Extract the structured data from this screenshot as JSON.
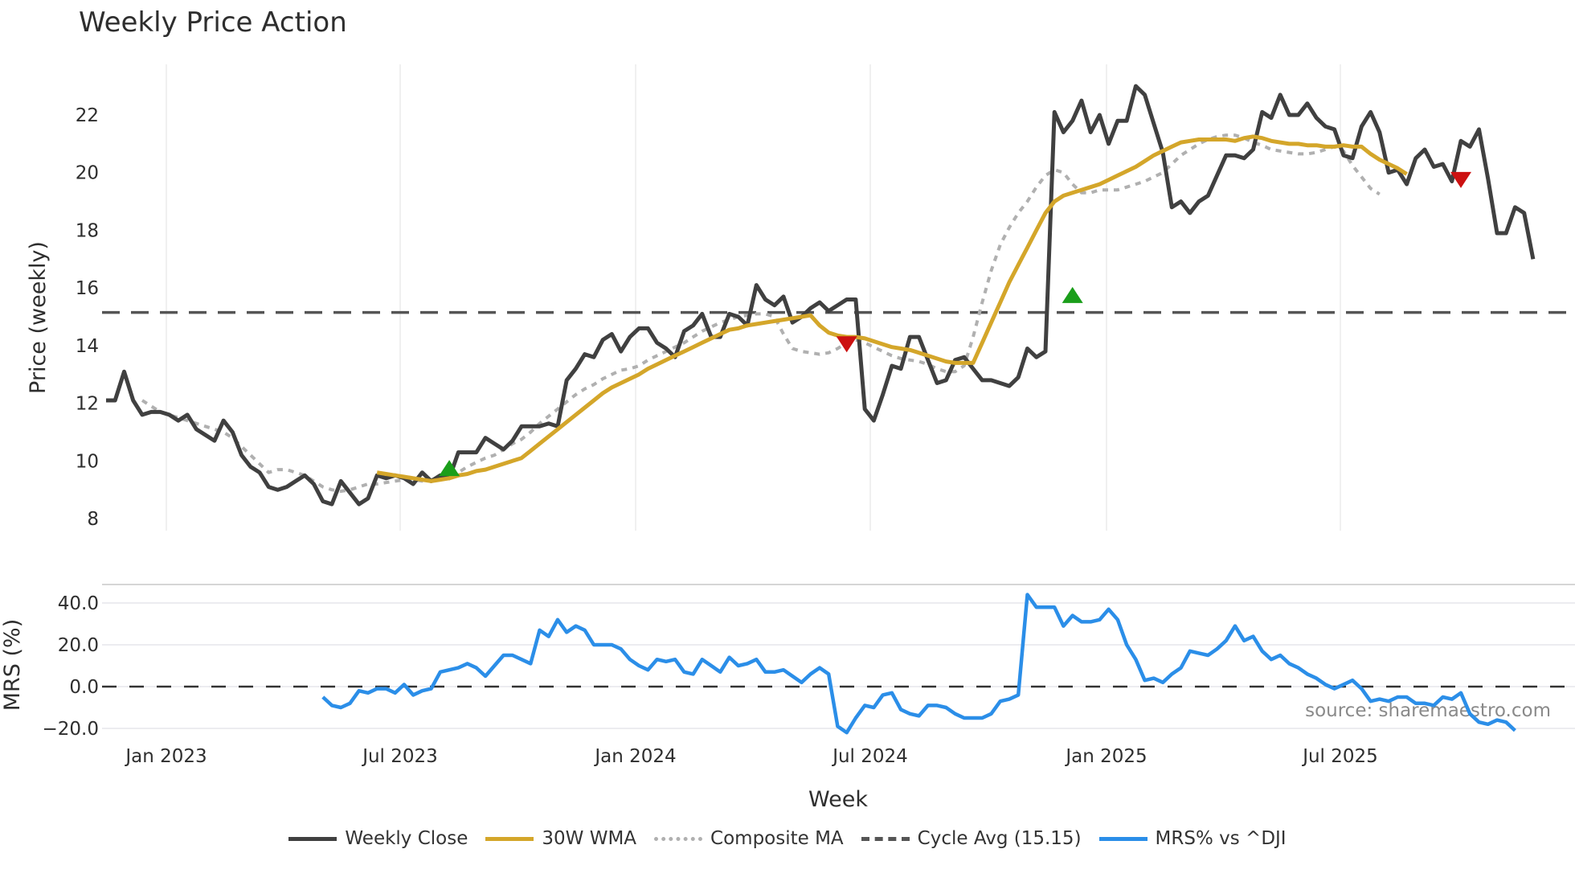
{
  "title": "Weekly Price Action",
  "watermark": "source: sharemaestro.com",
  "colors": {
    "weekly_close": "#404040",
    "wma": "#d4a62a",
    "composite_ma": "#b0b0b0",
    "cycle_avg": "#555555",
    "mrs": "#2b8ee8",
    "buy_signal": "#1a9e1a",
    "sell_signal": "#cc1111",
    "grid": "#ececf0"
  },
  "legend": [
    {
      "label": "Weekly Close",
      "style": "solid",
      "color": "#404040"
    },
    {
      "label": "30W WMA",
      "style": "solid",
      "color": "#d4a62a"
    },
    {
      "label": "Composite MA",
      "style": "dotted",
      "color": "#b0b0b0"
    },
    {
      "label": "Cycle Avg (15.15)",
      "style": "dashed",
      "color": "#555555"
    },
    {
      "label": "MRS% vs ^DJI",
      "style": "solid",
      "color": "#2b8ee8"
    }
  ],
  "chart_data": [
    {
      "type": "line",
      "title": "Weekly Price Action",
      "xlabel": "Week",
      "ylabel": "Price (weekly)",
      "ylim": [
        7.6,
        23.6
      ],
      "yticks": [
        8,
        10,
        12,
        14,
        16,
        18,
        20,
        22
      ],
      "xticks": [
        "Jan 2023",
        "Jul 2023",
        "Jan 2024",
        "Jul 2024",
        "Jan 2025",
        "Jul 2025"
      ],
      "grid": true,
      "legend_position": "bottom",
      "x_start_week_offset": -6.7,
      "x_step": "1 week",
      "series": [
        {
          "name": "Weekly Close",
          "start_index": 0,
          "values": [
            12.1,
            12.1,
            13.1,
            12.1,
            11.6,
            11.7,
            11.7,
            11.6,
            11.4,
            11.6,
            11.1,
            10.9,
            10.7,
            11.4,
            11.0,
            10.2,
            9.8,
            9.6,
            9.1,
            9.0,
            9.1,
            9.3,
            9.5,
            9.2,
            8.6,
            8.5,
            9.3,
            8.9,
            8.5,
            8.7,
            9.5,
            9.4,
            9.5,
            9.4,
            9.2,
            9.6,
            9.3,
            9.5,
            9.4,
            10.3,
            10.3,
            10.3,
            10.8,
            10.6,
            10.4,
            10.7,
            11.2,
            11.2,
            11.2,
            11.3,
            11.2,
            12.8,
            13.2,
            13.7,
            13.6,
            14.2,
            14.4,
            13.8,
            14.3,
            14.6,
            14.6,
            14.1,
            13.9,
            13.6,
            14.5,
            14.7,
            15.1,
            14.3,
            14.3,
            15.1,
            15.0,
            14.7,
            16.1,
            15.6,
            15.4,
            15.7,
            14.8,
            15.0,
            15.3,
            15.5,
            15.2,
            15.4,
            15.6,
            15.6,
            11.8,
            11.4,
            12.3,
            13.3,
            13.2,
            14.3,
            14.3,
            13.5,
            12.7,
            12.8,
            13.5,
            13.6,
            13.2,
            12.8,
            12.8,
            12.7,
            12.6,
            12.9,
            13.9,
            13.6,
            13.8,
            22.1,
            21.4,
            21.8,
            22.5,
            21.4,
            22.0,
            21.0,
            21.8,
            21.8,
            23.0,
            22.7,
            21.7,
            20.7,
            18.8,
            19.0,
            18.6,
            19.0,
            19.2,
            19.9,
            20.6,
            20.6,
            20.5,
            20.8,
            22.1,
            21.9,
            22.7,
            22.0,
            22.0,
            22.4,
            21.9,
            21.6,
            21.5,
            20.6,
            20.5,
            21.6,
            22.1,
            21.4,
            20.0,
            20.1,
            19.6,
            20.5,
            20.8,
            20.2,
            20.3,
            19.7,
            21.1,
            20.9,
            21.5,
            19.8,
            17.9,
            17.9,
            18.8,
            18.6,
            17.0
          ]
        },
        {
          "name": "30W WMA",
          "start_index": 30,
          "values": [
            9.6,
            9.55,
            9.5,
            9.45,
            9.4,
            9.35,
            9.3,
            9.35,
            9.4,
            9.5,
            9.55,
            9.65,
            9.7,
            9.8,
            9.9,
            10.0,
            10.1,
            10.35,
            10.6,
            10.85,
            11.1,
            11.35,
            11.6,
            11.85,
            12.1,
            12.35,
            12.55,
            12.7,
            12.85,
            13.0,
            13.2,
            13.35,
            13.5,
            13.65,
            13.8,
            13.95,
            14.1,
            14.25,
            14.4,
            14.55,
            14.6,
            14.7,
            14.75,
            14.8,
            14.85,
            14.9,
            14.95,
            15.0,
            15.05,
            14.7,
            14.45,
            14.35,
            14.3,
            14.3,
            14.25,
            14.15,
            14.05,
            13.95,
            13.9,
            13.85,
            13.75,
            13.65,
            13.55,
            13.45,
            13.4,
            13.4,
            13.4,
            14.1,
            14.8,
            15.5,
            16.2,
            16.8,
            17.4,
            18.0,
            18.6,
            19.0,
            19.2,
            19.3,
            19.4,
            19.5,
            19.6,
            19.75,
            19.9,
            20.05,
            20.2,
            20.4,
            20.6,
            20.75,
            20.9,
            21.05,
            21.1,
            21.15,
            21.15,
            21.15,
            21.15,
            21.1,
            21.2,
            21.25,
            21.2,
            21.1,
            21.05,
            21.0,
            21.0,
            20.95,
            20.95,
            20.9,
            20.9,
            20.95,
            20.9,
            20.9,
            20.65,
            20.45,
            20.3,
            20.15,
            19.95
          ]
        },
        {
          "name": "Composite MA",
          "start_index": 4,
          "values": [
            12.1,
            11.9,
            11.7,
            11.6,
            11.5,
            11.4,
            11.3,
            11.2,
            11.1,
            11.0,
            10.8,
            10.5,
            10.2,
            9.9,
            9.6,
            9.7,
            9.7,
            9.6,
            9.5,
            9.3,
            9.1,
            9.0,
            8.95,
            9.0,
            9.1,
            9.2,
            9.2,
            9.25,
            9.3,
            9.35,
            9.35,
            9.3,
            9.35,
            9.4,
            9.5,
            9.6,
            9.8,
            9.95,
            10.1,
            10.2,
            10.4,
            10.6,
            10.75,
            11.0,
            11.3,
            11.55,
            11.8,
            12.05,
            12.3,
            12.5,
            12.65,
            12.85,
            13.0,
            13.15,
            13.2,
            13.3,
            13.5,
            13.65,
            13.8,
            13.95,
            14.1,
            14.3,
            14.5,
            14.65,
            14.8,
            14.9,
            15.0,
            15.05,
            15.1,
            15.1,
            15.0,
            14.4,
            13.9,
            13.8,
            13.75,
            13.7,
            13.75,
            13.9,
            14.1,
            14.2,
            14.1,
            13.95,
            13.8,
            13.65,
            13.55,
            13.5,
            13.45,
            13.35,
            13.2,
            13.1,
            13.1,
            13.3,
            14.3,
            15.5,
            16.6,
            17.5,
            18.1,
            18.6,
            19.0,
            19.5,
            19.9,
            20.1,
            20.0,
            19.6,
            19.3,
            19.3,
            19.4,
            19.4,
            19.4,
            19.5,
            19.6,
            19.7,
            19.85,
            20.0,
            20.3,
            20.6,
            20.8,
            21.0,
            21.15,
            21.25,
            21.3,
            21.3,
            21.2,
            21.05,
            20.95,
            20.8,
            20.75,
            20.7,
            20.65,
            20.65,
            20.7,
            20.8,
            20.9,
            20.75,
            20.25,
            19.85,
            19.45,
            19.25
          ]
        },
        {
          "name": "Cycle Avg (15.15)",
          "constant": 15.15
        }
      ],
      "markers": [
        {
          "type": "buy",
          "week_index": 38,
          "value": 9.7
        },
        {
          "type": "sell",
          "week_index": 82,
          "value": 14.1
        },
        {
          "type": "buy",
          "week_index": 107,
          "value": 15.7
        },
        {
          "type": "sell",
          "week_index": 150,
          "value": 19.8
        }
      ]
    },
    {
      "type": "line",
      "title": "",
      "xlabel": "Week",
      "ylabel": "MRS (%)",
      "ylim": [
        -25,
        48
      ],
      "yticks": [
        "-20.0",
        "0.0",
        "20.0",
        "40.0"
      ],
      "reference_line": 0,
      "series": [
        {
          "name": "MRS% vs ^DJI",
          "start_index": 24,
          "values": [
            -5,
            -9,
            -10,
            -8,
            -2,
            -3,
            -1,
            -1,
            -3,
            1,
            -4,
            -2,
            -1,
            7,
            8,
            9,
            11,
            9,
            5,
            10,
            15,
            15,
            13,
            11,
            27,
            24,
            32,
            26,
            29,
            27,
            20,
            20,
            20,
            18,
            13,
            10,
            8,
            13,
            12,
            13,
            7,
            6,
            13,
            10,
            7,
            14,
            10,
            11,
            13,
            7,
            7,
            8,
            5,
            2,
            6,
            9,
            6,
            -19,
            -22,
            -15,
            -9,
            -10,
            -4,
            -3,
            -11,
            -13,
            -14,
            -9,
            -9,
            -10,
            -13,
            -15,
            -15,
            -15,
            -13,
            -7,
            -6,
            -4,
            44,
            38,
            38,
            38,
            29,
            34,
            31,
            31,
            32,
            37,
            32,
            20,
            13,
            3,
            4,
            2,
            6,
            9,
            17,
            16,
            15,
            18,
            22,
            29,
            22,
            24,
            17,
            13,
            15,
            11,
            9,
            6,
            4,
            1,
            -1,
            1,
            3,
            -1,
            -7,
            -6,
            -7,
            -5,
            -5,
            -8,
            -8,
            -9,
            -5,
            -6,
            -3,
            -13,
            -17,
            -18,
            -16,
            -17,
            -21
          ]
        }
      ]
    }
  ],
  "axes": {
    "price": {
      "label": "Price (weekly)",
      "ticks": [
        "8",
        "10",
        "12",
        "14",
        "16",
        "18",
        "20",
        "22"
      ]
    },
    "mrs": {
      "label": "MRS (%)",
      "ticks": [
        "40.0",
        "20.0",
        "0.0",
        "−20.0"
      ]
    },
    "x": {
      "label": "Week",
      "ticks": [
        "Jan 2023",
        "Jul 2023",
        "Jan 2024",
        "Jul 2024",
        "Jan 2025",
        "Jul 2025"
      ]
    }
  }
}
